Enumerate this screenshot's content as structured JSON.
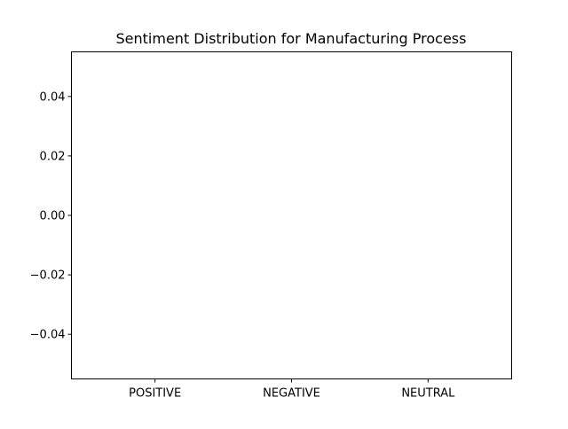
{
  "chart_data": {
    "type": "bar",
    "title": "Sentiment Distribution for Manufacturing Process",
    "categories": [
      "POSITIVE",
      "NEGATIVE",
      "NEUTRAL"
    ],
    "values": [
      0,
      0,
      0
    ],
    "xlabel": "",
    "ylabel": "",
    "ylim": [
      -0.055,
      0.055
    ],
    "yticks": [
      0.04,
      0.02,
      0.0,
      -0.02,
      -0.04
    ],
    "ytick_labels": [
      "0.04",
      "0.02",
      "0.00",
      "−0.02",
      "−0.04"
    ],
    "grid": false,
    "legend": false
  }
}
